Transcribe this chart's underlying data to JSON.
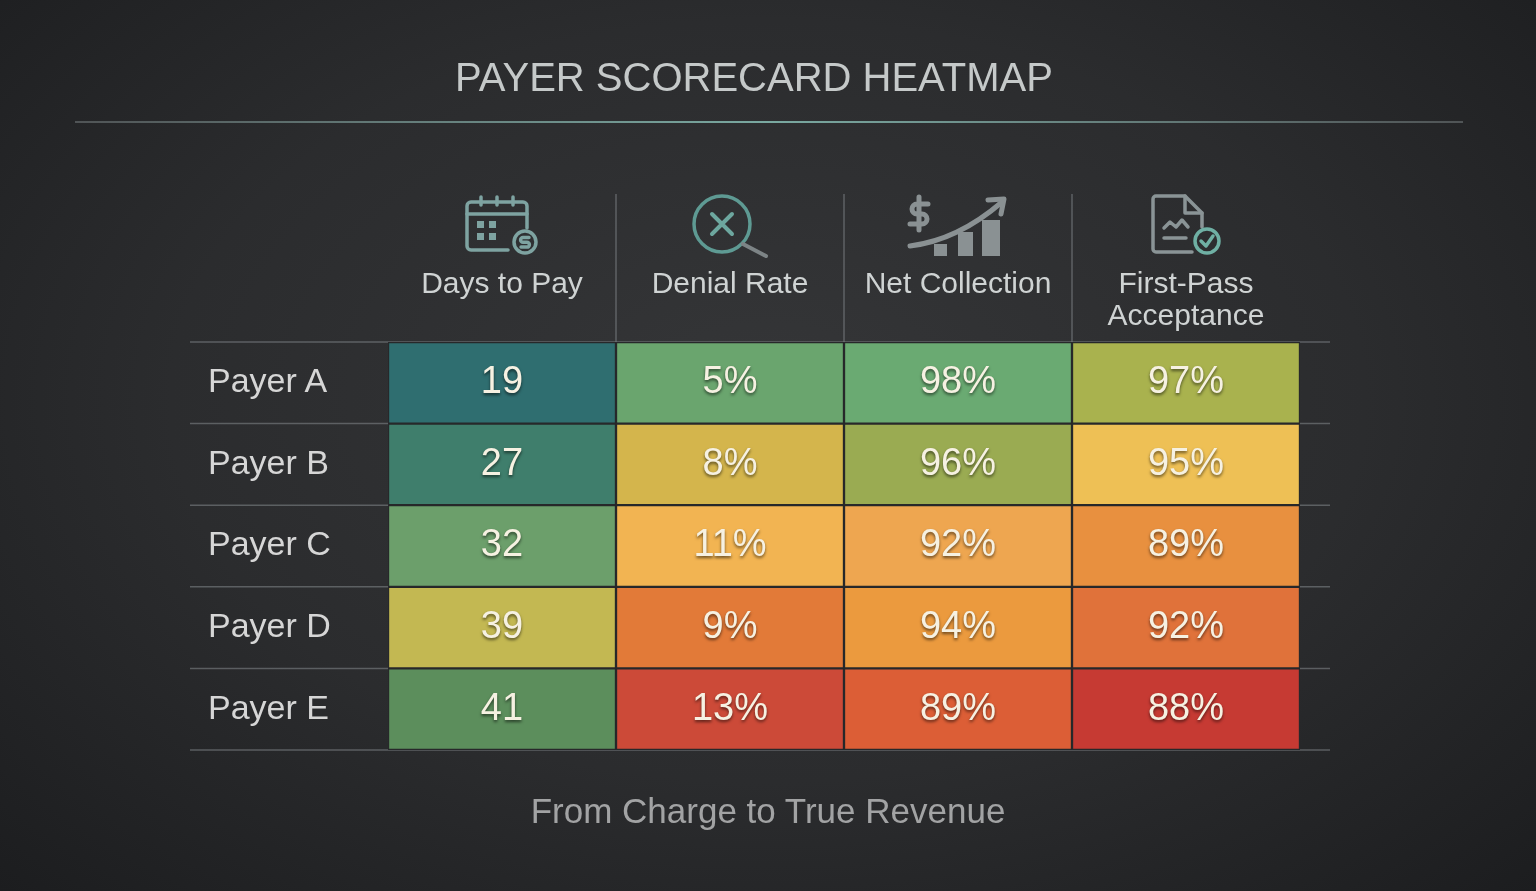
{
  "chart_data": {
    "type": "heatmap",
    "title": "PAYER SCORECARD HEATMAP",
    "annotations": [
      "From Charge to True Revenue"
    ],
    "categories": [
      "Days to Pay",
      "Denial Rate",
      "Net Collection",
      "First-Pass Acceptance"
    ],
    "y_categories": [
      "Payer A",
      "Payer B",
      "Payer C",
      "Payer D",
      "Payer E"
    ],
    "cells": [
      [
        19,
        5,
        98,
        97
      ],
      [
        27,
        8,
        96,
        95
      ],
      [
        32,
        11,
        92,
        89
      ],
      [
        39,
        9,
        94,
        92
      ],
      [
        41,
        13,
        89,
        88
      ]
    ],
    "cell_labels": [
      [
        "19",
        "5%",
        "98%",
        "97%"
      ],
      [
        "27",
        "8%",
        "96%",
        "95%"
      ],
      [
        "32",
        "11%",
        "92%",
        "89%"
      ],
      [
        "39",
        "9%",
        "94%",
        "92%"
      ],
      [
        "41",
        "13%",
        "89%",
        "88%"
      ]
    ],
    "colors": [
      [
        "#2f6e70",
        "#6aa56e",
        "#6aaa72",
        "#a9b24e"
      ],
      [
        "#3f7e6c",
        "#d4b54c",
        "#9aab52",
        "#eec055"
      ],
      [
        "#6c9f6b",
        "#f2b452",
        "#eea650",
        "#e8903f"
      ],
      [
        "#c3b852",
        "#e27a38",
        "#eb9a3e",
        "#e0723a"
      ],
      [
        "#5c8e5c",
        "#cc4a38",
        "#dc5e36",
        "#c63a33"
      ]
    ],
    "data_labels": true,
    "grid": true
  }
}
